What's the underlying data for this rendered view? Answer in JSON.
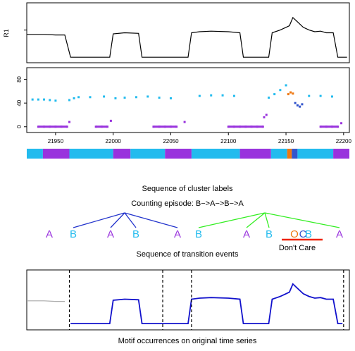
{
  "chart_data": [
    {
      "type": "line",
      "panel": "top",
      "ylabel": "R1",
      "xlim": [
        21925,
        22205
      ],
      "ylim": [
        0,
        1
      ],
      "x": [
        21925,
        21930,
        21940,
        21950,
        21958,
        21963,
        21966,
        21975,
        21985,
        21992,
        21997,
        22000,
        22010,
        22022,
        22025,
        22035,
        22045,
        22050,
        22055,
        22060,
        22065,
        22068,
        22075,
        22085,
        22100,
        22110,
        22113,
        22130,
        22135,
        22138,
        22145,
        22150,
        22153,
        22156,
        22160,
        22165,
        22170,
        22175,
        22180,
        22185,
        22191,
        22195,
        22199,
        22203
      ],
      "y": [
        0.47,
        0.47,
        0.47,
        0.46,
        0.46,
        0.05,
        0.05,
        0.05,
        0.05,
        0.05,
        0.05,
        0.48,
        0.5,
        0.49,
        0.05,
        0.05,
        0.05,
        0.05,
        0.05,
        0.05,
        0.05,
        0.5,
        0.52,
        0.53,
        0.52,
        0.5,
        0.05,
        0.05,
        0.05,
        0.5,
        0.55,
        0.6,
        0.63,
        0.78,
        0.7,
        0.6,
        0.55,
        0.52,
        0.53,
        0.5,
        0.5,
        0.05,
        0.05,
        0.05
      ]
    },
    {
      "type": "scatter",
      "panel": "middle",
      "xlim": [
        21925,
        22205
      ],
      "ylim": [
        -5,
        95
      ],
      "yticks": [
        0,
        40,
        80
      ],
      "xticks": [
        21950,
        22000,
        22050,
        22100,
        22150,
        22200
      ],
      "series": [
        {
          "color": "#22bbee",
          "x": [
            21930,
            21935,
            21940,
            21945,
            21950,
            21962,
            21966,
            21970,
            21980,
            21992,
            22002,
            22010,
            22020,
            22030,
            22040,
            22050,
            22075,
            22085,
            22095,
            22105,
            22135,
            22140,
            22145,
            22150,
            22170,
            22180,
            22190
          ],
          "y": [
            46,
            46,
            46,
            45,
            44,
            45,
            48,
            50,
            50,
            51,
            48,
            49,
            50,
            51,
            49,
            48,
            52,
            53,
            53,
            52,
            49,
            55,
            62,
            70,
            52,
            52,
            51
          ]
        },
        {
          "color": "#9933dd",
          "x": [
            21935,
            21940,
            21945,
            21950,
            21955,
            21960,
            21962,
            21985,
            21990,
            21995,
            21998,
            22035,
            22040,
            22045,
            22050,
            22055,
            22062,
            22100,
            22105,
            22110,
            22115,
            22120,
            22125,
            22130,
            22131,
            22133,
            22180,
            22185,
            22190,
            22195,
            22198
          ],
          "y": [
            0,
            0,
            0,
            0,
            0,
            0,
            8,
            0,
            0,
            0,
            10,
            0,
            0,
            0,
            0,
            0,
            8,
            0,
            0,
            0,
            0,
            0,
            0,
            0,
            16,
            20,
            0,
            0,
            0,
            0,
            6
          ]
        },
        {
          "color": "#ee7711",
          "x": [
            22152,
            22154,
            22156
          ],
          "y": [
            55,
            58,
            56
          ]
        },
        {
          "color": "#3355cc",
          "x": [
            22158,
            22160,
            22162,
            22164
          ],
          "y": [
            40,
            36,
            34,
            38
          ]
        }
      ]
    },
    {
      "type": "heatmap",
      "panel": "cluster-labels",
      "caption": "Sequence of cluster labels",
      "segments": [
        {
          "from": 21925,
          "to": 21939,
          "color": "#22bbee"
        },
        {
          "from": 21939,
          "to": 21962,
          "color": "#9933dd"
        },
        {
          "from": 21962,
          "to": 22000,
          "color": "#22bbee"
        },
        {
          "from": 22000,
          "to": 22015,
          "color": "#9933dd"
        },
        {
          "from": 22015,
          "to": 22045,
          "color": "#22bbee"
        },
        {
          "from": 22045,
          "to": 22068,
          "color": "#9933dd"
        },
        {
          "from": 22068,
          "to": 22110,
          "color": "#22bbee"
        },
        {
          "from": 22110,
          "to": 22137,
          "color": "#9933dd"
        },
        {
          "from": 22137,
          "to": 22151,
          "color": "#22bbee"
        },
        {
          "from": 22151,
          "to": 22155,
          "color": "#ee7711"
        },
        {
          "from": 22155,
          "to": 22160,
          "color": "#3355cc"
        },
        {
          "from": 22160,
          "to": 22191,
          "color": "#22bbee"
        },
        {
          "from": 22191,
          "to": 22205,
          "color": "#9933dd"
        }
      ]
    },
    {
      "type": "line",
      "panel": "motif-occurrences",
      "caption": "Motif occurrences on original time series",
      "xlim": [
        21925,
        22205
      ],
      "ylim": [
        0,
        1
      ],
      "x": [
        21925,
        21930,
        21940,
        21950,
        21958,
        21963,
        21966,
        21975,
        21985,
        21992,
        21997,
        22000,
        22010,
        22022,
        22025,
        22035,
        22045,
        22050,
        22055,
        22060,
        22065,
        22068,
        22075,
        22085,
        22100,
        22110,
        22113,
        22130,
        22135,
        22138,
        22145,
        22150,
        22153,
        22156,
        22160,
        22165,
        22170,
        22175,
        22180,
        22185,
        22191,
        22195,
        22199,
        22203
      ],
      "y": [
        0.47,
        0.47,
        0.47,
        0.46,
        0.46,
        0.05,
        0.05,
        0.05,
        0.05,
        0.05,
        0.05,
        0.48,
        0.5,
        0.49,
        0.05,
        0.05,
        0.05,
        0.05,
        0.05,
        0.05,
        0.05,
        0.5,
        0.52,
        0.53,
        0.52,
        0.5,
        0.05,
        0.05,
        0.05,
        0.5,
        0.55,
        0.6,
        0.63,
        0.78,
        0.7,
        0.6,
        0.55,
        0.52,
        0.53,
        0.5,
        0.5,
        0.05,
        0.05,
        0.05
      ],
      "highlight_from": 21962,
      "highlight_to": 22200,
      "dashed_lines": [
        21962,
        22043,
        22068,
        22200
      ]
    }
  ],
  "diagram": {
    "episode_title": "Counting episode: B−>A−>B−>A",
    "events_caption": "Sequence of transition events",
    "dont_care_label": "Don't Care",
    "events": [
      {
        "label": "A",
        "color": "#9933dd"
      },
      {
        "label": "B",
        "color": "#22bbee"
      },
      {
        "label": "A",
        "color": "#9933dd"
      },
      {
        "label": "B",
        "color": "#22bbee"
      },
      {
        "label": "A",
        "color": "#9933dd"
      },
      {
        "label": "B",
        "color": "#22bbee"
      },
      {
        "label": "A",
        "color": "#9933dd"
      },
      {
        "label": "B",
        "color": "#22bbee"
      },
      {
        "label": "O",
        "color": "#ee7711"
      },
      {
        "label": "C",
        "color": "#3355cc"
      },
      {
        "label": "B",
        "color": "#22bbee"
      },
      {
        "label": "A",
        "color": "#9933dd"
      }
    ],
    "colors": {
      "blue_tree": "#2233cc",
      "green_tree": "#33ee22",
      "strike": "#ee2200",
      "highlight": "#1111cc",
      "gray": "#aaaaaa"
    }
  }
}
